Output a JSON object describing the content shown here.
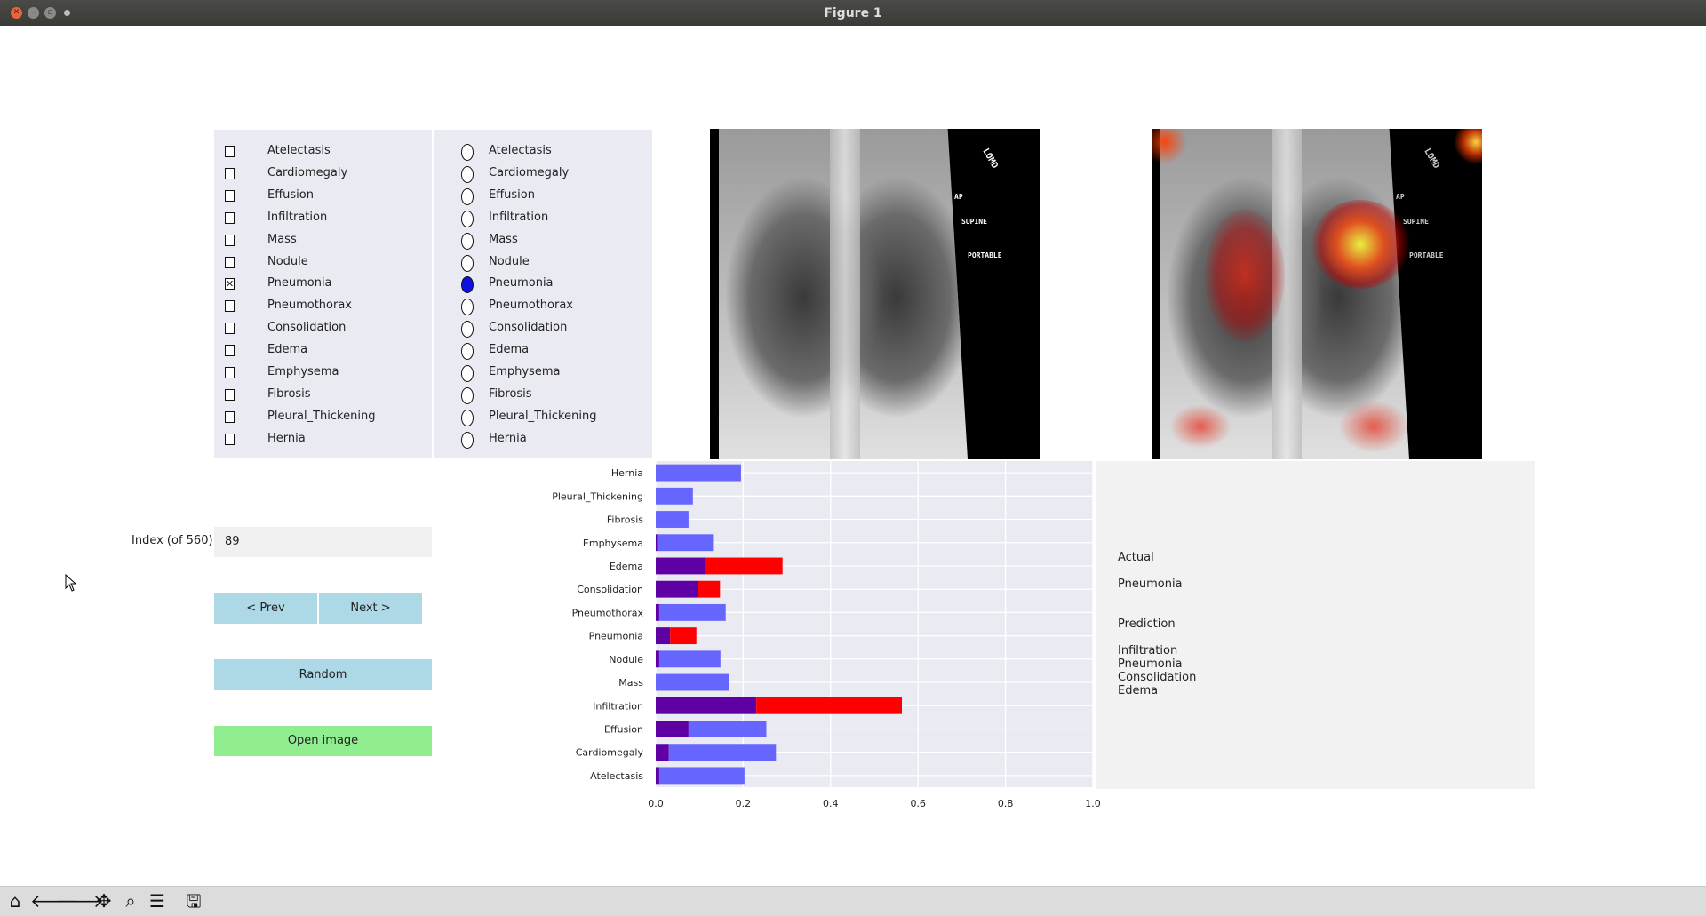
{
  "window": {
    "title": "Figure 1"
  },
  "checkbox_panel": {
    "items": [
      {
        "label": "Atelectasis",
        "checked": false
      },
      {
        "label": "Cardiomegaly",
        "checked": false
      },
      {
        "label": "Effusion",
        "checked": false
      },
      {
        "label": "Infiltration",
        "checked": false
      },
      {
        "label": "Mass",
        "checked": false
      },
      {
        "label": "Nodule",
        "checked": false
      },
      {
        "label": "Pneumonia",
        "checked": true
      },
      {
        "label": "Pneumothorax",
        "checked": false
      },
      {
        "label": "Consolidation",
        "checked": false
      },
      {
        "label": "Edema",
        "checked": false
      },
      {
        "label": "Emphysema",
        "checked": false
      },
      {
        "label": "Fibrosis",
        "checked": false
      },
      {
        "label": "Pleural_Thickening",
        "checked": false
      },
      {
        "label": "Hernia",
        "checked": false
      }
    ]
  },
  "radio_panel": {
    "items": [
      "Atelectasis",
      "Cardiomegaly",
      "Effusion",
      "Infiltration",
      "Mass",
      "Nodule",
      "Pneumonia",
      "Pneumothorax",
      "Consolidation",
      "Edema",
      "Emphysema",
      "Fibrosis",
      "Pleural_Thickening",
      "Hernia"
    ],
    "selected": "Pneumonia"
  },
  "xray_labels": {
    "marker": "LOMD",
    "view": "AP",
    "position": "SUPINE",
    "type": "PORTABLE"
  },
  "index_field": {
    "label": "Index (of 560)",
    "value": "89"
  },
  "buttons": {
    "prev": "< Prev",
    "next": "Next >",
    "random": "Random",
    "open": "Open image"
  },
  "results": {
    "actual_heading": "Actual",
    "actual": [
      "Pneumonia"
    ],
    "prediction_heading": "Prediction",
    "prediction": [
      "Infiltration",
      "Pneumonia",
      "Consolidation",
      "Edema"
    ]
  },
  "chart_data": {
    "type": "bar",
    "orientation": "horizontal",
    "stacked": true,
    "categories": [
      "Atelectasis",
      "Cardiomegaly",
      "Effusion",
      "Infiltration",
      "Mass",
      "Nodule",
      "Pneumonia",
      "Pneumothorax",
      "Consolidation",
      "Edema",
      "Emphysema",
      "Fibrosis",
      "Pleural_Thickening",
      "Hernia"
    ],
    "series": [
      {
        "color": "#5e00a3",
        "values": [
          0.008,
          0.03,
          0.075,
          0.23,
          0.0,
          0.008,
          0.033,
          0.008,
          0.097,
          0.113,
          0.003,
          0.0,
          0.0,
          0.0
        ]
      },
      {
        "color": "#6666ff",
        "values": [
          0.195,
          0.245,
          0.178,
          0.0,
          0.168,
          0.14,
          0.0,
          0.152,
          0.0,
          0.0,
          0.13,
          0.075,
          0.085,
          0.195
        ]
      },
      {
        "color": "#ff0000",
        "values": [
          0.0,
          0.0,
          0.0,
          0.333,
          0.0,
          0.0,
          0.06,
          0.0,
          0.05,
          0.177,
          0.0,
          0.0,
          0.0,
          0.0
        ]
      }
    ],
    "xlim": [
      0,
      1.0
    ],
    "xticks": [
      "0.0",
      "0.2",
      "0.4",
      "0.6",
      "0.8",
      "1.0"
    ],
    "grid": true
  },
  "toolbar": {
    "icons": [
      "home-icon",
      "back-icon",
      "forward-icon",
      "pan-icon",
      "zoom-icon",
      "configure-icon",
      "save-icon"
    ]
  },
  "colors": {
    "panel_bg": "#eaeaf2",
    "button_blue": "#add8e6",
    "button_green": "#90ee90"
  }
}
